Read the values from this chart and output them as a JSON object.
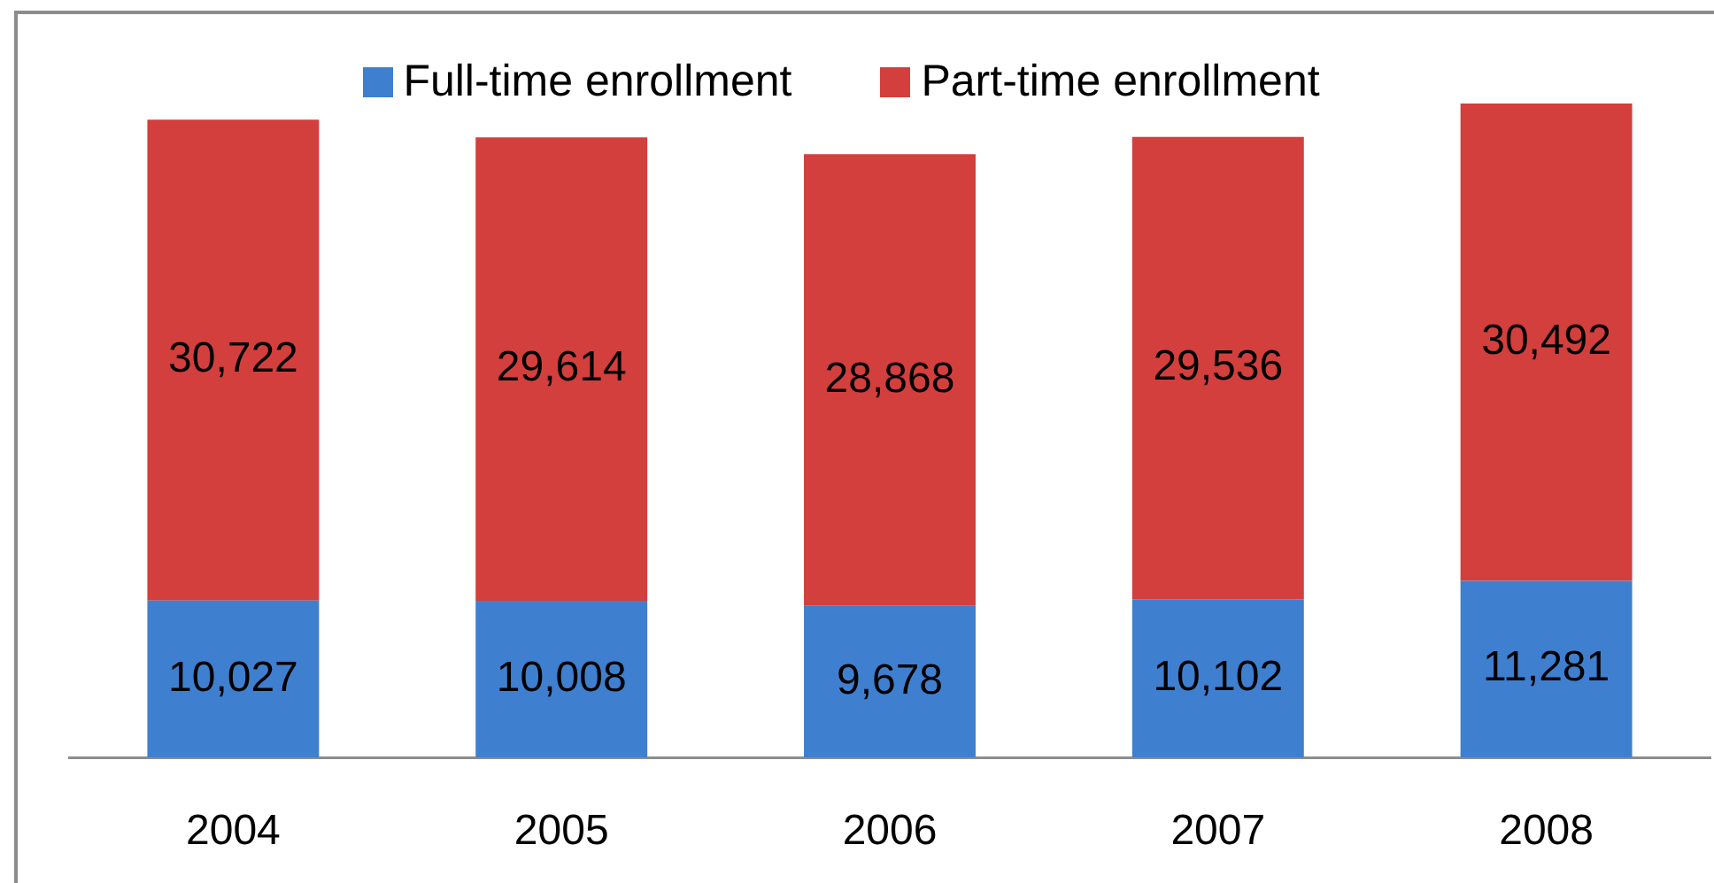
{
  "chart_data": {
    "type": "bar",
    "categories": [
      "2004",
      "2005",
      "2006",
      "2007",
      "2008"
    ],
    "series": [
      {
        "name": "Full-time enrollment",
        "color": "#3f7fcf",
        "values": [
          10027,
          10008,
          9678,
          10102,
          11281
        ],
        "value_labels": [
          "10,027",
          "10,008",
          "9,678",
          "10,102",
          "11,281"
        ]
      },
      {
        "name": "Part-time enrollment",
        "color": "#d33f3d",
        "values": [
          30722,
          29614,
          28868,
          29536,
          30492
        ],
        "value_labels": [
          "30,722",
          "29,614",
          "28,868",
          "29,536",
          "30,492"
        ]
      }
    ],
    "stacked": true,
    "legend": "top"
  }
}
